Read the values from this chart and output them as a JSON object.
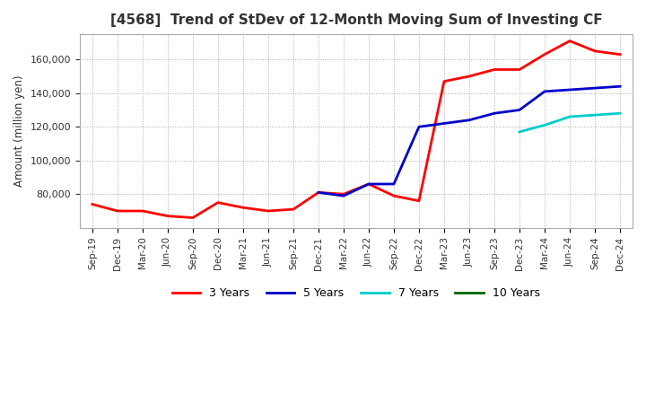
{
  "title": "[4568]  Trend of StDev of 12-Month Moving Sum of Investing CF",
  "ylabel": "Amount (million yen)",
  "background_color": "#ffffff",
  "grid_color": "#aaaaaa",
  "ylim": [
    60000,
    175000
  ],
  "yticks": [
    80000,
    100000,
    120000,
    140000,
    160000
  ],
  "series": {
    "3 Years": {
      "color": "#ff0000",
      "x": [
        "Sep-19",
        "Dec-19",
        "Mar-20",
        "Jun-20",
        "Sep-20",
        "Dec-20",
        "Mar-21",
        "Jun-21",
        "Sep-21",
        "Dec-21",
        "Mar-22",
        "Jun-22",
        "Sep-22",
        "Dec-22",
        "Mar-23",
        "Jun-23",
        "Sep-23",
        "Dec-23",
        "Mar-24",
        "Jun-24",
        "Sep-24",
        "Dec-24"
      ],
      "y": [
        74000,
        70000,
        70000,
        67000,
        66000,
        75000,
        72000,
        70000,
        71000,
        81000,
        80000,
        86000,
        79000,
        76000,
        147000,
        150000,
        154000,
        154000,
        163000,
        171000,
        165000,
        163000
      ]
    },
    "5 Years": {
      "color": "#0000cc",
      "x": [
        "Dec-21",
        "Mar-22",
        "Jun-22",
        "Sep-22",
        "Dec-22",
        "Mar-23",
        "Jun-23",
        "Sep-23",
        "Dec-23",
        "Mar-24",
        "Jun-24",
        "Sep-24",
        "Dec-24"
      ],
      "y": [
        81000,
        79000,
        86000,
        86000,
        120000,
        122000,
        124000,
        128000,
        130000,
        141000,
        142000,
        143000,
        144000
      ]
    },
    "7 Years": {
      "color": "#00cccc",
      "x": [
        "Dec-23",
        "Mar-24",
        "Jun-24",
        "Sep-24",
        "Dec-24"
      ],
      "y": [
        117000,
        121000,
        126000,
        127000,
        128000
      ]
    },
    "10 Years": {
      "color": "#006600",
      "x": [],
      "y": []
    }
  },
  "x_labels": [
    "Sep-19",
    "Dec-19",
    "Mar-20",
    "Jun-20",
    "Sep-20",
    "Dec-20",
    "Mar-21",
    "Jun-21",
    "Sep-21",
    "Dec-21",
    "Mar-22",
    "Jun-22",
    "Sep-22",
    "Dec-22",
    "Mar-23",
    "Jun-23",
    "Sep-23",
    "Dec-23",
    "Mar-24",
    "Jun-24",
    "Sep-24",
    "Dec-24"
  ]
}
